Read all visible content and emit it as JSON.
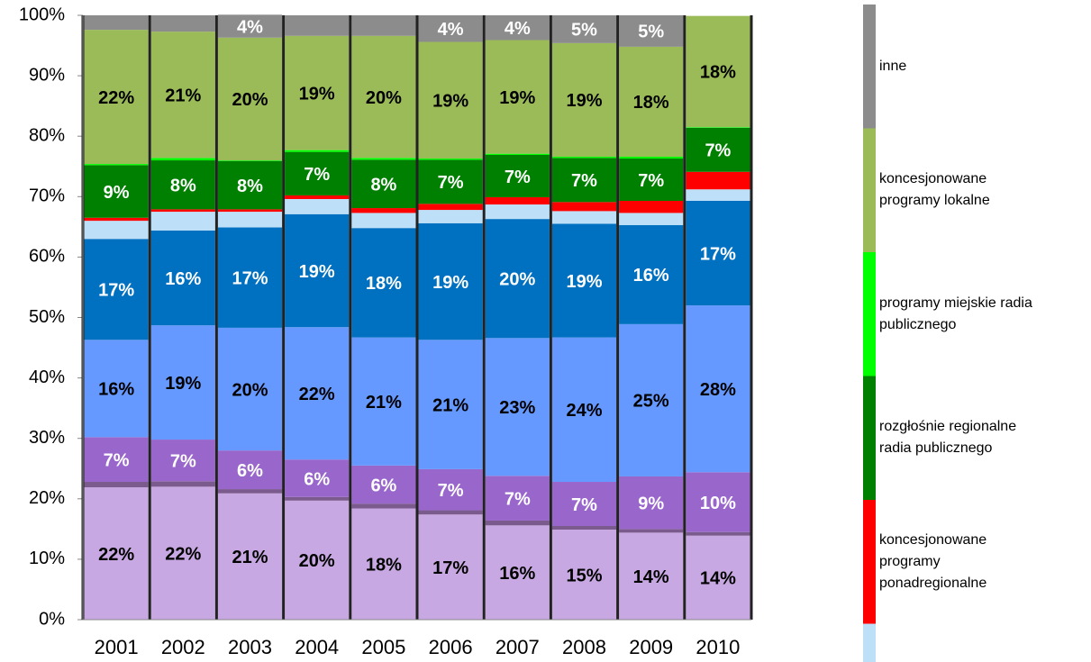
{
  "chart_data": {
    "type": "stacked_bar",
    "categories": [
      "2001",
      "2002",
      "2003",
      "2004",
      "2005",
      "2006",
      "2007",
      "2008",
      "2009",
      "2010"
    ],
    "ylim": [
      0,
      100
    ],
    "yticks": [
      {
        "value": 0,
        "label": "0%"
      },
      {
        "value": 10,
        "label": "10%"
      },
      {
        "value": 20,
        "label": "20%"
      },
      {
        "value": 30,
        "label": "30%"
      },
      {
        "value": 40,
        "label": "40%"
      },
      {
        "value": 50,
        "label": "50%"
      },
      {
        "value": 60,
        "label": "60%"
      },
      {
        "value": 70,
        "label": "70%"
      },
      {
        "value": 80,
        "label": "80%"
      },
      {
        "value": 90,
        "label": "90%"
      },
      {
        "value": 100,
        "label": "100%"
      }
    ],
    "series": [
      {
        "color": "#c8a8e2",
        "values": [
          21.9,
          22,
          20.9,
          19.7,
          18.4,
          17.4,
          15.6,
          14.9,
          14.4,
          13.9
        ],
        "value_labels": [
          "22%",
          "22%",
          "21%",
          "20%",
          "18%",
          "17%",
          "16%",
          "15%",
          "14%",
          "14%"
        ]
      },
      {
        "color": "#7b5a8e",
        "values": [
          0.9,
          0.9,
          0.7,
          0.6,
          0.8,
          0.7,
          0.8,
          0.6,
          0.6,
          0.6
        ]
      },
      {
        "color": "#9966cc",
        "values": [
          7.4,
          6.9,
          6.4,
          6.2,
          6.3,
          6.8,
          7.4,
          7.3,
          8.7,
          9.9
        ],
        "value_labels": [
          "7%",
          "7%",
          "6%",
          "6%",
          "6%",
          "7%",
          "7%",
          "7%",
          "9%",
          "10%"
        ]
      },
      {
        "color": "#6699ff",
        "values": [
          16.1,
          18.9,
          20.3,
          21.9,
          21.2,
          21.4,
          22.8,
          23.9,
          25.2,
          27.6
        ],
        "value_labels": [
          "16%",
          "19%",
          "20%",
          "22%",
          "21%",
          "21%",
          "23%",
          "24%",
          "25%",
          "28%"
        ]
      },
      {
        "color": "#0070c0",
        "values": [
          16.7,
          15.7,
          16.6,
          18.7,
          18.1,
          19.3,
          19.7,
          18.8,
          16.4,
          17.3
        ],
        "value_labels": [
          "17%",
          "16%",
          "17%",
          "19%",
          "18%",
          "19%",
          "20%",
          "19%",
          "16%",
          "17%"
        ]
      },
      {
        "color": "#bde0f8",
        "values": [
          3,
          3.1,
          2.6,
          2.5,
          2.5,
          2.2,
          2.4,
          2.1,
          2,
          1.9
        ]
      },
      {
        "name": "koncesjonowane\nprogramy\nponadregionalne",
        "color": "#ff0000",
        "values": [
          0.5,
          0.4,
          0.4,
          0.6,
          0.8,
          1,
          1.2,
          1.5,
          2,
          2.9
        ]
      },
      {
        "name": "rozgłośnie regionalne\nradia publicznego",
        "color": "#008000",
        "values": [
          8.7,
          8.1,
          8,
          7.2,
          8,
          7.3,
          7,
          7.3,
          7,
          7.3
        ],
        "value_labels": [
          "9%",
          "8%",
          "8%",
          "7%",
          "8%",
          "7%",
          "7%",
          "7%",
          "7%",
          "7%"
        ]
      },
      {
        "name": "programy miejskie radia\npublicznego",
        "color": "#00ff00",
        "values": [
          0.2,
          0.4,
          0.1,
          0.3,
          0.3,
          0.2,
          0.2,
          0.2,
          0.3,
          0.1
        ]
      },
      {
        "name": "koncesjonowane\nprogramy lokalne",
        "color": "#9bbb59",
        "values": [
          22.2,
          20.9,
          20.3,
          18.9,
          20.2,
          19.3,
          18.8,
          18.8,
          18.2,
          18.4
        ],
        "value_labels": [
          "22%",
          "21%",
          "20%",
          "19%",
          "20%",
          "19%",
          "19%",
          "19%",
          "18%",
          "18%"
        ]
      },
      {
        "name": "inne",
        "color": "#8c8c8c",
        "values": [
          2.4,
          2.7,
          3.8,
          3.4,
          3.4,
          4.4,
          4.1,
          4.6,
          5.2,
          0
        ],
        "value_labels": [
          null,
          null,
          "4%",
          null,
          null,
          "4%",
          "4%",
          "5%",
          "5%",
          null
        ]
      }
    ]
  }
}
